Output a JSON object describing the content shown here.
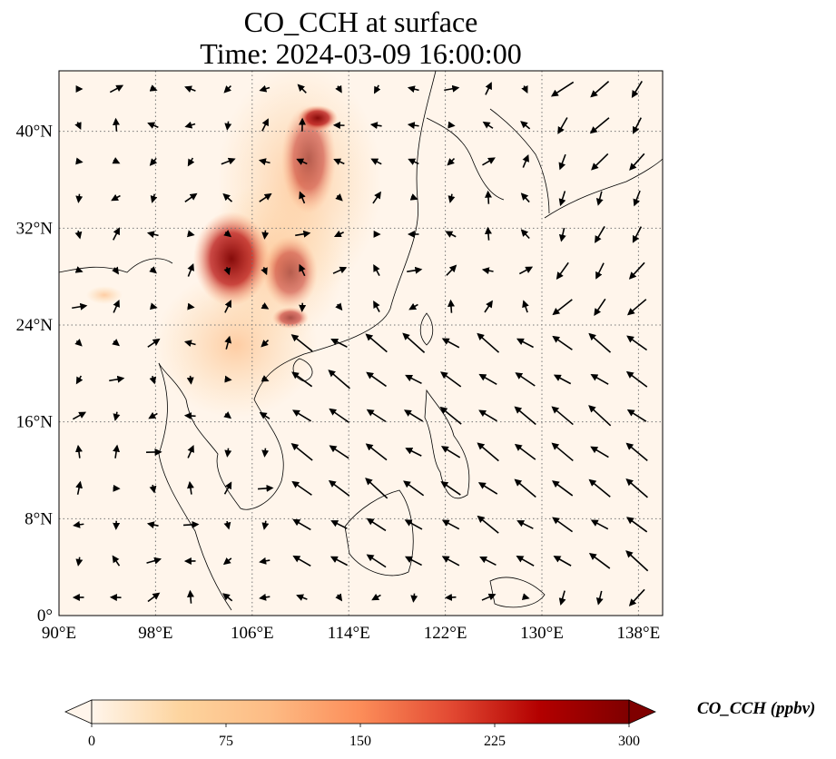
{
  "title": {
    "line1": "CO_CCH at surface",
    "line2": "Time: 2024-03-09 16:00:00"
  },
  "map": {
    "lon_range": [
      90,
      140
    ],
    "lat_range": [
      0,
      45
    ],
    "lon_ticks": [
      "90°E",
      "98°E",
      "106°E",
      "114°E",
      "122°E",
      "130°E",
      "138°E"
    ],
    "lat_ticks": [
      "0°",
      "8°N",
      "16°N",
      "24°N",
      "32°N",
      "40°N"
    ],
    "gridlines": "dotted",
    "background_color": "#fff5eb"
  },
  "colorbar": {
    "label": "CO_CCH (ppbv)",
    "ticks": [
      "0",
      "75",
      "150",
      "225",
      "300"
    ],
    "range": [
      0,
      300
    ],
    "colormap": [
      "#fff5eb",
      "#fdd49e",
      "#fdbb84",
      "#fc8d59",
      "#e34a33",
      "#b30000",
      "#7f0000"
    ],
    "extend": "both"
  }
}
